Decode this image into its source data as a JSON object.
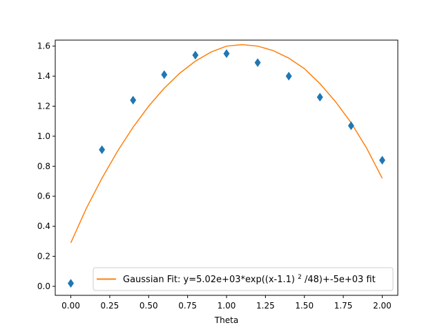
{
  "chart_data": {
    "type": "scatter",
    "title": "",
    "xlabel": "Theta",
    "ylabel": "",
    "xlim": [
      -0.1,
      2.1
    ],
    "ylim": [
      -0.06,
      1.64
    ],
    "xticks": [
      0.0,
      0.25,
      0.5,
      0.75,
      1.0,
      1.25,
      1.5,
      1.75,
      2.0
    ],
    "xtick_labels": [
      "0.00",
      "0.25",
      "0.50",
      "0.75",
      "1.00",
      "1.25",
      "1.50",
      "1.75",
      "2.00"
    ],
    "yticks": [
      0.0,
      0.2,
      0.4,
      0.6,
      0.8,
      1.0,
      1.2,
      1.4,
      1.6
    ],
    "ytick_labels": [
      "0.0",
      "0.2",
      "0.4",
      "0.6",
      "0.8",
      "1.0",
      "1.2",
      "1.4",
      "1.6"
    ],
    "grid": false,
    "legend_position": "bottom-right",
    "series": [
      {
        "kind": "points",
        "marker": "diamond",
        "color": "#1f77b4",
        "x": [
          0.0,
          0.2,
          0.4,
          0.6,
          0.8,
          1.0,
          1.2,
          1.4,
          1.6,
          1.8,
          2.0
        ],
        "y": [
          0.02,
          0.91,
          1.24,
          1.41,
          1.54,
          1.55,
          1.49,
          1.4,
          1.26,
          1.07,
          0.84
        ]
      },
      {
        "kind": "fit_line",
        "name": "Gaussian Fit: y=5.02e+03*exp((x-1.1)²/48)+-5e+03 fit",
        "color": "#ff7f0e",
        "x": [
          0.0,
          0.1,
          0.2,
          0.3,
          0.4,
          0.5,
          0.6,
          0.7,
          0.8,
          0.9,
          1.0,
          1.1,
          1.2,
          1.3,
          1.4,
          1.5,
          1.6,
          1.7,
          1.8,
          1.9,
          2.0
        ],
        "y": [
          0.29,
          0.52,
          0.72,
          0.9,
          1.06,
          1.2,
          1.32,
          1.42,
          1.5,
          1.56,
          1.6,
          1.61,
          1.6,
          1.57,
          1.52,
          1.45,
          1.35,
          1.23,
          1.09,
          0.92,
          0.72
        ]
      }
    ],
    "legend": {
      "prefix": "Gaussian Fit: y=5.02e+03*exp((x-1.1)",
      "superscript": "2",
      "suffix": "/48)+-5e+03 fit"
    }
  }
}
